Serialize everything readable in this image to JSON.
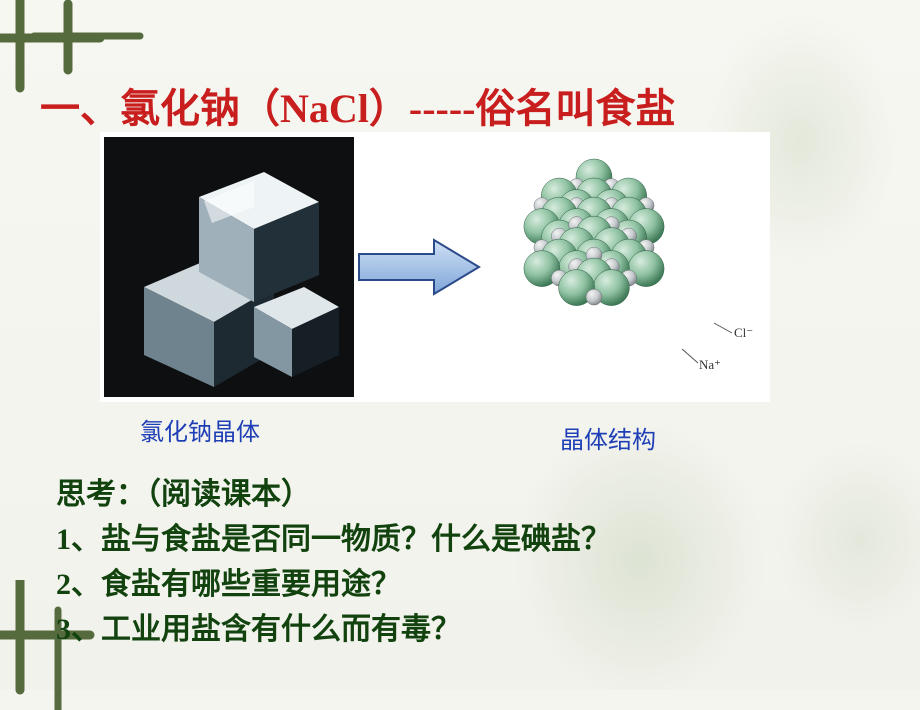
{
  "title": "一、氯化钠（NaCl）-----俗名叫食盐",
  "captions": {
    "left": "氯化钠晶体",
    "right": "晶体结构"
  },
  "model_labels": {
    "na": "Na⁺",
    "cl": "Cl⁻"
  },
  "questions": {
    "prompt": "思考：（阅读课本）",
    "items": [
      "1、盐与食盐是否同一物质？什么是碘盐？",
      "2、食盐有哪些重要用途？",
      "3、工业用盐含有什么而有毒？"
    ]
  },
  "style": {
    "title_color": "#c81e1e",
    "caption_color": "#1f3fb6",
    "question_color": "#12430f",
    "background": "#f5f5f0",
    "motif_color": "#556b3e",
    "crystal": {
      "bg": "#0e0f11",
      "face_light": "#e6ecef",
      "face_mid": "#9fb0ba",
      "face_dark": "#22303a"
    },
    "arrow": {
      "stroke": "#2b4a8a",
      "fill_light": "#cfe0f5",
      "fill_dark": "#7fa6d8"
    },
    "ions": {
      "cl_light": "#b7d6c1",
      "cl_dark": "#4f8d6a",
      "na_light": "#e8e8e8",
      "na_dark": "#9aa0a4"
    }
  }
}
